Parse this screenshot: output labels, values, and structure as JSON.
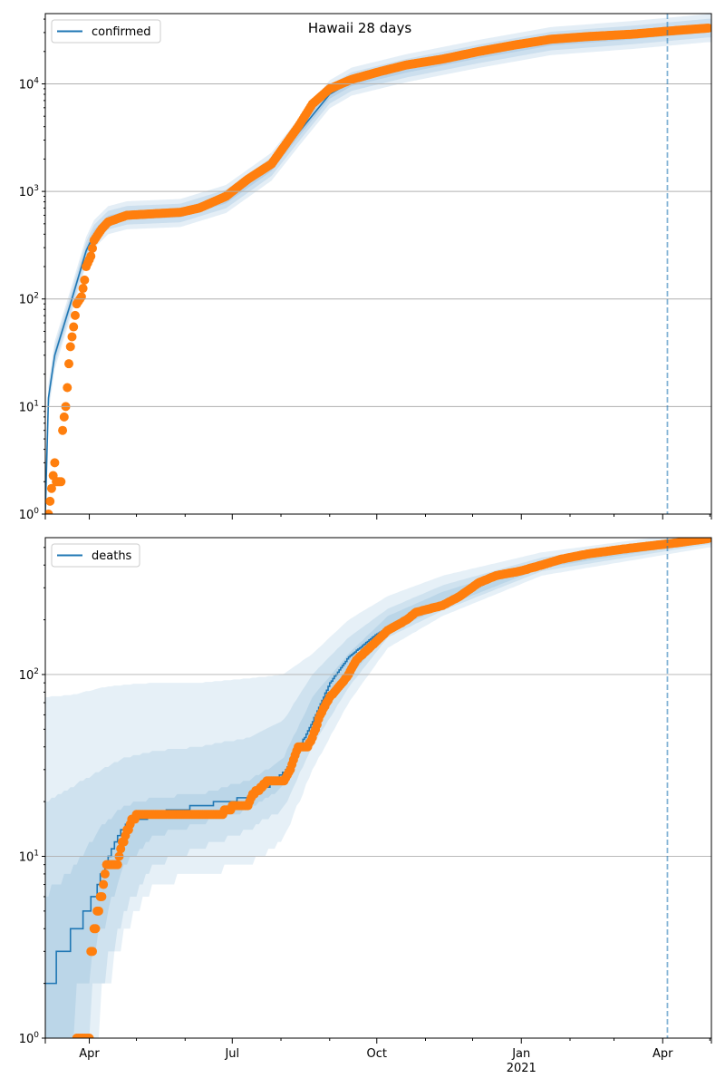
{
  "chart_data": [
    {
      "type": "line",
      "title": "Hawaii 28 days",
      "legend": {
        "label": "confirmed",
        "placement": "top-left"
      },
      "yscale": "log",
      "ylim": [
        1,
        45000
      ],
      "xlim": [
        "2020-03-04",
        "2021-05-02"
      ],
      "yticks": [
        {
          "base": "10",
          "exp": "0",
          "value": 1
        },
        {
          "base": "10",
          "exp": "1",
          "value": 10
        },
        {
          "base": "10",
          "exp": "2",
          "value": 100
        },
        {
          "base": "10",
          "exp": "3",
          "value": 1000
        },
        {
          "base": "10",
          "exp": "4",
          "value": 10000
        }
      ],
      "grid": true,
      "vline_date": "2021-04-04",
      "model": [
        [
          "2020-03-04",
          1
        ],
        [
          "2020-03-06",
          12
        ],
        [
          "2020-03-10",
          30
        ],
        [
          "2020-03-20",
          90
        ],
        [
          "2020-03-30",
          280
        ],
        [
          "2020-04-04",
          400
        ],
        [
          "2020-04-13",
          540
        ],
        [
          "2020-04-25",
          600
        ],
        [
          "2020-05-29",
          630
        ],
        [
          "2020-06-27",
          850
        ],
        [
          "2020-07-26",
          1700
        ],
        [
          "2020-08-12",
          3500
        ],
        [
          "2020-09-01",
          8000
        ],
        [
          "2020-09-15",
          10500
        ],
        [
          "2020-10-20",
          14000
        ],
        [
          "2020-12-05",
          19000
        ],
        [
          "2021-01-20",
          25000
        ],
        [
          "2021-03-13",
          28500
        ],
        [
          "2021-04-30",
          33000
        ]
      ],
      "band_factors": [
        1.1,
        1.22,
        1.35
      ],
      "observed": [
        [
          "2020-03-06",
          1
        ],
        [
          "2020-03-10",
          3
        ],
        [
          "2020-03-11",
          2
        ],
        [
          "2020-03-14",
          2
        ],
        [
          "2020-03-15",
          6
        ],
        [
          "2020-03-16",
          8
        ],
        [
          "2020-03-17",
          10
        ],
        [
          "2020-03-18",
          15
        ],
        [
          "2020-03-19",
          25
        ],
        [
          "2020-03-20",
          36
        ],
        [
          "2020-03-22",
          55
        ],
        [
          "2020-03-24",
          90
        ],
        [
          "2020-03-27",
          105
        ],
        [
          "2020-03-29",
          150
        ],
        [
          "2020-03-30",
          200
        ],
        [
          "2020-04-02",
          250
        ],
        [
          "2020-04-04",
          350
        ],
        [
          "2020-04-09",
          450
        ],
        [
          "2020-04-13",
          520
        ],
        [
          "2020-04-25",
          600
        ],
        [
          "2020-05-12",
          620
        ],
        [
          "2020-05-29",
          640
        ],
        [
          "2020-06-10",
          700
        ],
        [
          "2020-06-27",
          900
        ],
        [
          "2020-07-11",
          1300
        ],
        [
          "2020-07-26",
          1800
        ],
        [
          "2020-08-02",
          2500
        ],
        [
          "2020-08-12",
          4000
        ],
        [
          "2020-08-21",
          6500
        ],
        [
          "2020-09-01",
          9000
        ],
        [
          "2020-09-15",
          11000
        ],
        [
          "2020-10-03",
          13000
        ],
        [
          "2020-10-20",
          15000
        ],
        [
          "2020-11-12",
          17000
        ],
        [
          "2020-12-05",
          20000
        ],
        [
          "2020-12-28",
          23000
        ],
        [
          "2021-01-20",
          26000
        ],
        [
          "2021-02-12",
          27500
        ],
        [
          "2021-03-13",
          29000
        ],
        [
          "2021-04-05",
          31000
        ],
        [
          "2021-04-30",
          33000
        ]
      ]
    },
    {
      "type": "line",
      "legend": {
        "label": "deaths",
        "placement": "top-left"
      },
      "yscale": "log",
      "ylim": [
        1,
        566
      ],
      "xlim": [
        "2020-03-04",
        "2021-05-02"
      ],
      "yticks": [
        {
          "base": "10",
          "exp": "0",
          "value": 1
        },
        {
          "base": "10",
          "exp": "1",
          "value": 10
        },
        {
          "base": "10",
          "exp": "2",
          "value": 100
        }
      ],
      "xticks": [
        {
          "date": "2020-04-01",
          "label": "Apr"
        },
        {
          "date": "2020-07-01",
          "label": "Jul"
        },
        {
          "date": "2020-10-01",
          "label": "Oct"
        },
        {
          "date": "2021-01-01",
          "label": "Jan",
          "sub": "2021"
        },
        {
          "date": "2021-04-01",
          "label": "Apr"
        }
      ],
      "grid": true,
      "vline_date": "2021-04-04",
      "model": [
        [
          "2020-03-04",
          2
        ],
        [
          "2020-03-15",
          3
        ],
        [
          "2020-03-24",
          4
        ],
        [
          "2020-03-30",
          5
        ],
        [
          "2020-04-04",
          6
        ],
        [
          "2020-04-09",
          8
        ],
        [
          "2020-04-15",
          11
        ],
        [
          "2020-04-24",
          15
        ],
        [
          "2020-05-12",
          17
        ],
        [
          "2020-06-10",
          19
        ],
        [
          "2020-07-11",
          21
        ],
        [
          "2020-07-26",
          25
        ],
        [
          "2020-08-07",
          32
        ],
        [
          "2020-08-21",
          55
        ],
        [
          "2020-09-01",
          90
        ],
        [
          "2020-09-13",
          125
        ],
        [
          "2020-09-30",
          165
        ],
        [
          "2020-10-20",
          210
        ],
        [
          "2020-11-12",
          245
        ],
        [
          "2020-12-16",
          340
        ],
        [
          "2021-01-14",
          400
        ],
        [
          "2021-03-07",
          490
        ],
        [
          "2021-04-30",
          565
        ]
      ],
      "bands": {
        "dates": [
          "2020-03-04",
          "2020-03-24",
          "2020-04-09",
          "2020-04-24",
          "2020-05-12",
          "2020-06-10",
          "2020-07-11",
          "2020-08-02",
          "2020-08-21",
          "2020-09-13",
          "2020-10-08",
          "2020-11-12",
          "2021-01-14",
          "2021-04-30"
        ],
        "outer": [
          [
            1,
            75
          ],
          [
            1,
            78
          ],
          [
            1.5,
            85
          ],
          [
            4,
            88
          ],
          [
            7,
            90
          ],
          [
            8,
            90
          ],
          [
            9,
            95
          ],
          [
            12,
            100
          ],
          [
            30,
            130
          ],
          [
            70,
            200
          ],
          [
            140,
            270
          ],
          [
            210,
            350
          ],
          [
            350,
            470
          ],
          [
            500,
            620
          ]
        ],
        "middle": [
          [
            1,
            20
          ],
          [
            1,
            25
          ],
          [
            2,
            30
          ],
          [
            5,
            35
          ],
          [
            9,
            38
          ],
          [
            11,
            40
          ],
          [
            14,
            45
          ],
          [
            18,
            55
          ],
          [
            40,
            100
          ],
          [
            85,
            160
          ],
          [
            160,
            230
          ],
          [
            225,
            310
          ],
          [
            370,
            440
          ],
          [
            520,
            600
          ]
        ],
        "inner": [
          [
            1,
            6
          ],
          [
            1.5,
            9
          ],
          [
            4,
            15
          ],
          [
            9,
            19
          ],
          [
            13,
            21
          ],
          [
            15,
            22
          ],
          [
            18,
            26
          ],
          [
            24,
            34
          ],
          [
            50,
            75
          ],
          [
            95,
            130
          ],
          [
            170,
            210
          ],
          [
            235,
            285
          ],
          [
            385,
            425
          ],
          [
            540,
            580
          ]
        ]
      },
      "observed": [
        [
          "2020-03-24",
          1
        ],
        [
          "2020-04-01",
          1
        ],
        [
          "2020-04-02",
          3
        ],
        [
          "2020-04-06",
          5
        ],
        [
          "2020-04-09",
          6
        ],
        [
          "2020-04-11",
          8
        ],
        [
          "2020-04-12",
          9
        ],
        [
          "2020-04-19",
          9
        ],
        [
          "2020-04-20",
          10
        ],
        [
          "2020-04-22",
          12
        ],
        [
          "2020-04-24",
          13
        ],
        [
          "2020-04-28",
          16
        ],
        [
          "2020-05-02",
          17
        ],
        [
          "2020-06-24",
          17
        ],
        [
          "2020-06-27",
          18
        ],
        [
          "2020-07-03",
          19
        ],
        [
          "2020-07-11",
          19
        ],
        [
          "2020-07-14",
          22
        ],
        [
          "2020-07-20",
          24
        ],
        [
          "2020-07-23",
          26
        ],
        [
          "2020-08-03",
          26
        ],
        [
          "2020-08-07",
          30
        ],
        [
          "2020-08-12",
          40
        ],
        [
          "2020-08-18",
          40
        ],
        [
          "2020-08-21",
          45
        ],
        [
          "2020-08-26",
          60
        ],
        [
          "2020-09-01",
          75
        ],
        [
          "2020-09-09",
          90
        ],
        [
          "2020-09-13",
          100
        ],
        [
          "2020-09-18",
          120
        ],
        [
          "2020-09-30",
          150
        ],
        [
          "2020-10-08",
          175
        ],
        [
          "2020-10-20",
          200
        ],
        [
          "2020-10-26",
          220
        ],
        [
          "2020-11-12",
          240
        ],
        [
          "2020-11-23",
          270
        ],
        [
          "2020-12-05",
          320
        ],
        [
          "2020-12-16",
          350
        ],
        [
          "2020-12-31",
          370
        ],
        [
          "2021-01-14",
          400
        ],
        [
          "2021-01-26",
          430
        ],
        [
          "2021-02-12",
          460
        ],
        [
          "2021-03-07",
          490
        ],
        [
          "2021-03-24",
          510
        ],
        [
          "2021-04-10",
          530
        ],
        [
          "2021-04-30",
          560
        ]
      ]
    }
  ],
  "colors": {
    "model": "#1f77b4",
    "observed": "#ff7f0e",
    "band": "#1f77b4",
    "grid": "#b0b0b0"
  }
}
